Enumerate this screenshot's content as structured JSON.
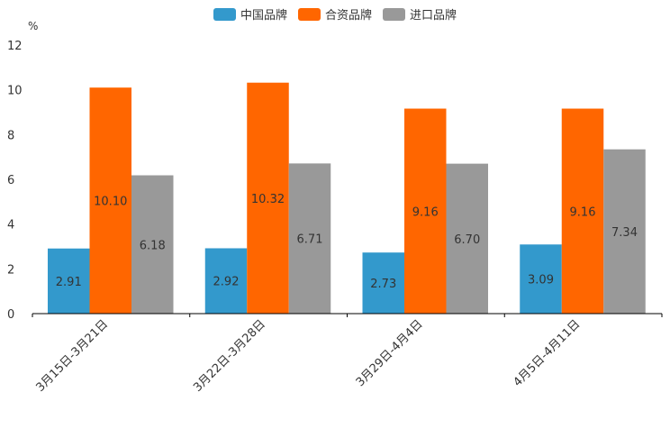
{
  "chart_data": {
    "type": "bar",
    "unit": "%",
    "categories": [
      "3月15日-3月21日",
      "3月22日-3月28日",
      "3月29日-4月4日",
      "4月5日-4月11日"
    ],
    "series": [
      {
        "name": "中国品牌",
        "color": "#3399cc",
        "values": [
          2.91,
          2.92,
          2.73,
          3.09
        ],
        "labels": [
          "2.91",
          "2.92",
          "2.73",
          "3.09"
        ]
      },
      {
        "name": "合资品牌",
        "color": "#ff6600",
        "values": [
          10.1,
          10.32,
          9.16,
          9.16
        ],
        "labels": [
          "10.10",
          "10.32",
          "9.16",
          "9.16"
        ]
      },
      {
        "name": "进口品牌",
        "color": "#999999",
        "values": [
          6.18,
          6.71,
          6.7,
          7.34
        ],
        "labels": [
          "6.18",
          "6.71",
          "6.70",
          "7.34"
        ]
      }
    ],
    "ylim": [
      0,
      12
    ],
    "yticks": [
      0,
      2,
      4,
      6,
      8,
      10,
      12
    ],
    "legend_position": "top-center"
  }
}
